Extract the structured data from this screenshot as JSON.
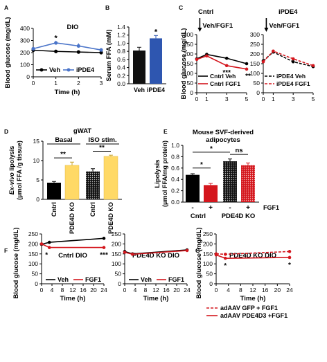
{
  "colors": {
    "black": "#000000",
    "blue": "#4a74c9",
    "red": "#d4161d",
    "yellow": "#ffd966",
    "gray": "#333333"
  },
  "chart_data": [
    {
      "id": "A",
      "panel_label": "A",
      "type": "line",
      "title": "DIO",
      "xlabel": "Time (h)",
      "ylabel": "Blood glucose (mg/dL)",
      "xlim": [
        0,
        3
      ],
      "ylim": [
        0,
        400
      ],
      "xticks": [
        "0",
        "1",
        "2",
        "3"
      ],
      "yticks": [
        "0",
        "100",
        "200",
        "300",
        "400"
      ],
      "x": [
        0,
        1,
        2,
        3
      ],
      "series": [
        {
          "name": "Veh",
          "color": "#000000",
          "values": [
            220,
            210,
            205,
            200
          ],
          "err": [
            12,
            10,
            10,
            10
          ]
        },
        {
          "name": "iPDE4",
          "color": "#4a74c9",
          "values": [
            232,
            280,
            255,
            222
          ],
          "err": [
            12,
            18,
            22,
            14
          ]
        }
      ],
      "annotations": [
        {
          "text": "*",
          "x": 1,
          "y": 300
        }
      ],
      "legend": "bottom"
    },
    {
      "id": "B",
      "panel_label": "B",
      "type": "bar",
      "ylabel": "Serum FFA (mM)",
      "ylim": [
        0,
        1.4
      ],
      "yticks": [
        "0.0",
        "0.2",
        "0.4",
        "0.6",
        "0.8",
        "1.0",
        "1.2",
        "1.4"
      ],
      "categories": [
        "Veh",
        "iPDE4"
      ],
      "values": [
        0.82,
        1.12
      ],
      "err": [
        0.08,
        0.07
      ],
      "annotations": [
        {
          "text": "*",
          "category": "iPDE4"
        }
      ]
    },
    {
      "id": "C",
      "panel_label": "C",
      "type": "line",
      "xlabel": "Time (h)",
      "ylabel": "Blood glucose (mg/dL)",
      "xlim": [
        0,
        5
      ],
      "ylim": [
        0,
        300
      ],
      "xticks": [
        "0",
        "1",
        "3",
        "5"
      ],
      "yticks": [
        "0",
        "50",
        "100",
        "150",
        "200",
        "250",
        "300"
      ],
      "subplots": [
        {
          "title": "Cntrl",
          "arrow_label": "Veh/FGF1",
          "x": [
            0,
            1,
            3,
            5
          ],
          "series": [
            {
              "name": "Cntrl Veh",
              "color": "#000000",
              "dash": false,
              "values": [
                175,
                198,
                178,
                150
              ]
            },
            {
              "name": "Cntrl FGF1",
              "color": "#d4161d",
              "dash": false,
              "values": [
                172,
                190,
                140,
                122
              ]
            }
          ],
          "annotations": [
            {
              "text": "***",
              "x": 3
            },
            {
              "text": "**",
              "x": 5
            }
          ]
        },
        {
          "title": "iPDE4",
          "arrow_label": "Veh/FGF1",
          "x": [
            0,
            1,
            3,
            5
          ],
          "series": [
            {
              "name": "iPDE4 Veh",
              "color": "#000000",
              "dash": true,
              "values": [
                165,
                210,
                160,
                135
              ]
            },
            {
              "name": "iPDE4 FGF1",
              "color": "#d4161d",
              "dash": true,
              "values": [
                160,
                215,
                175,
                140
              ]
            }
          ]
        }
      ]
    },
    {
      "id": "D",
      "panel_label": "D",
      "type": "bar",
      "title": "gWAT",
      "group_labels": [
        "Basal",
        "ISO stim."
      ],
      "ylabel_parts": [
        "Ex-vivo",
        " lipolysis",
        "(μmol FFA /g tissue)"
      ],
      "ylim": [
        0,
        15
      ],
      "yticks": [
        "0",
        "5",
        "10",
        "15"
      ],
      "categories": [
        "Cntrl",
        "PDE4D KO",
        "Cntrl",
        "PDE4D KO"
      ],
      "values": [
        4.3,
        8.8,
        7.2,
        11.1
      ],
      "err": [
        0.3,
        0.8,
        0.7,
        0.3
      ],
      "colors": [
        "#000000",
        "#ffd966",
        "#000000",
        "#ffd966"
      ],
      "patterned": [
        false,
        false,
        true,
        false
      ],
      "annotations": [
        {
          "text": "**",
          "between": [
            0,
            1
          ]
        },
        {
          "text": "**",
          "between": [
            2,
            3
          ]
        }
      ]
    },
    {
      "id": "E",
      "panel_label": "E",
      "type": "bar",
      "title_lines": [
        "Mouse SVF-derived",
        "adipocytes"
      ],
      "ylabel_lines": [
        "Lipolysis",
        "(μmol FFA/mg protein)"
      ],
      "ylim": [
        0,
        1.0
      ],
      "yticks": [
        "0.0",
        "0.2",
        "0.4",
        "0.6",
        "0.8",
        "1.0"
      ],
      "signs": [
        "-",
        "+",
        "-",
        "+"
      ],
      "treatment_label": "FGF1",
      "group_labels": [
        "Cntrl",
        "PDE4D KO"
      ],
      "values": [
        0.48,
        0.3,
        0.72,
        0.65
      ],
      "err": [
        0.02,
        0.03,
        0.04,
        0.04
      ],
      "colors": [
        "#000000",
        "#d4161d",
        "#000000",
        "#d4161d"
      ],
      "patterned": [
        false,
        false,
        true,
        true
      ],
      "annotations": [
        {
          "text": "*",
          "between": [
            0,
            1
          ]
        },
        {
          "text": "*",
          "between": [
            0,
            2
          ]
        },
        {
          "text": "ns",
          "between": [
            2,
            3
          ]
        }
      ]
    },
    {
      "id": "F",
      "panel_label": "F",
      "type": "line",
      "xlabel": "Time (h)",
      "ylabel": "Blood glucose (mg/dL)",
      "xlim": [
        0,
        24
      ],
      "ylim": [
        0,
        250
      ],
      "xticks": [
        "0",
        "4",
        "8",
        "12",
        "16",
        "20",
        "24"
      ],
      "yticks": [
        "0",
        "50",
        "100",
        "150",
        "200",
        "250"
      ],
      "subplots": [
        {
          "title": "Cntrl DIO",
          "x": [
            0,
            3,
            24
          ],
          "series": [
            {
              "name": "Veh",
              "color": "#000000",
              "values": [
                198,
                208,
                228
              ]
            },
            {
              "name": "FGF1",
              "color": "#d4161d",
              "values": [
                200,
                182,
                182
              ]
            }
          ],
          "annotations": [
            {
              "text": "*",
              "x": 3
            },
            {
              "text": "***",
              "x": 24
            }
          ]
        },
        {
          "title": "PDE4D KO DIO",
          "x": [
            0,
            3,
            24
          ],
          "series": [
            {
              "name": "Veh",
              "color": "#000000",
              "values": [
                162,
                150,
                170
              ]
            },
            {
              "name": "FGF1",
              "color": "#d4161d",
              "values": [
                158,
                148,
                167
              ]
            }
          ]
        }
      ]
    },
    {
      "id": "G",
      "panel_label": "G",
      "type": "line",
      "title": "PDE4D KO DIO",
      "xlabel": "Time (h)",
      "ylabel": "Blood glucose (mg/dL)",
      "xlim": [
        0,
        24
      ],
      "ylim": [
        0,
        250
      ],
      "xticks": [
        "0",
        "4",
        "8",
        "12",
        "16",
        "20",
        "24"
      ],
      "yticks": [
        "0",
        "50",
        "100",
        "150",
        "200",
        "250"
      ],
      "x": [
        0,
        3,
        24
      ],
      "series": [
        {
          "name": "adAAV GFP + FGF1",
          "color": "#d4161d",
          "dash": true,
          "values": [
            150,
            148,
            162
          ]
        },
        {
          "name": "adAAV PDE4D3 +FGF1",
          "color": "#d4161d",
          "dash": false,
          "values": [
            145,
            128,
            132
          ]
        }
      ],
      "annotations": [
        {
          "text": "*",
          "x": 3
        },
        {
          "text": "*",
          "x": 24
        }
      ]
    }
  ]
}
